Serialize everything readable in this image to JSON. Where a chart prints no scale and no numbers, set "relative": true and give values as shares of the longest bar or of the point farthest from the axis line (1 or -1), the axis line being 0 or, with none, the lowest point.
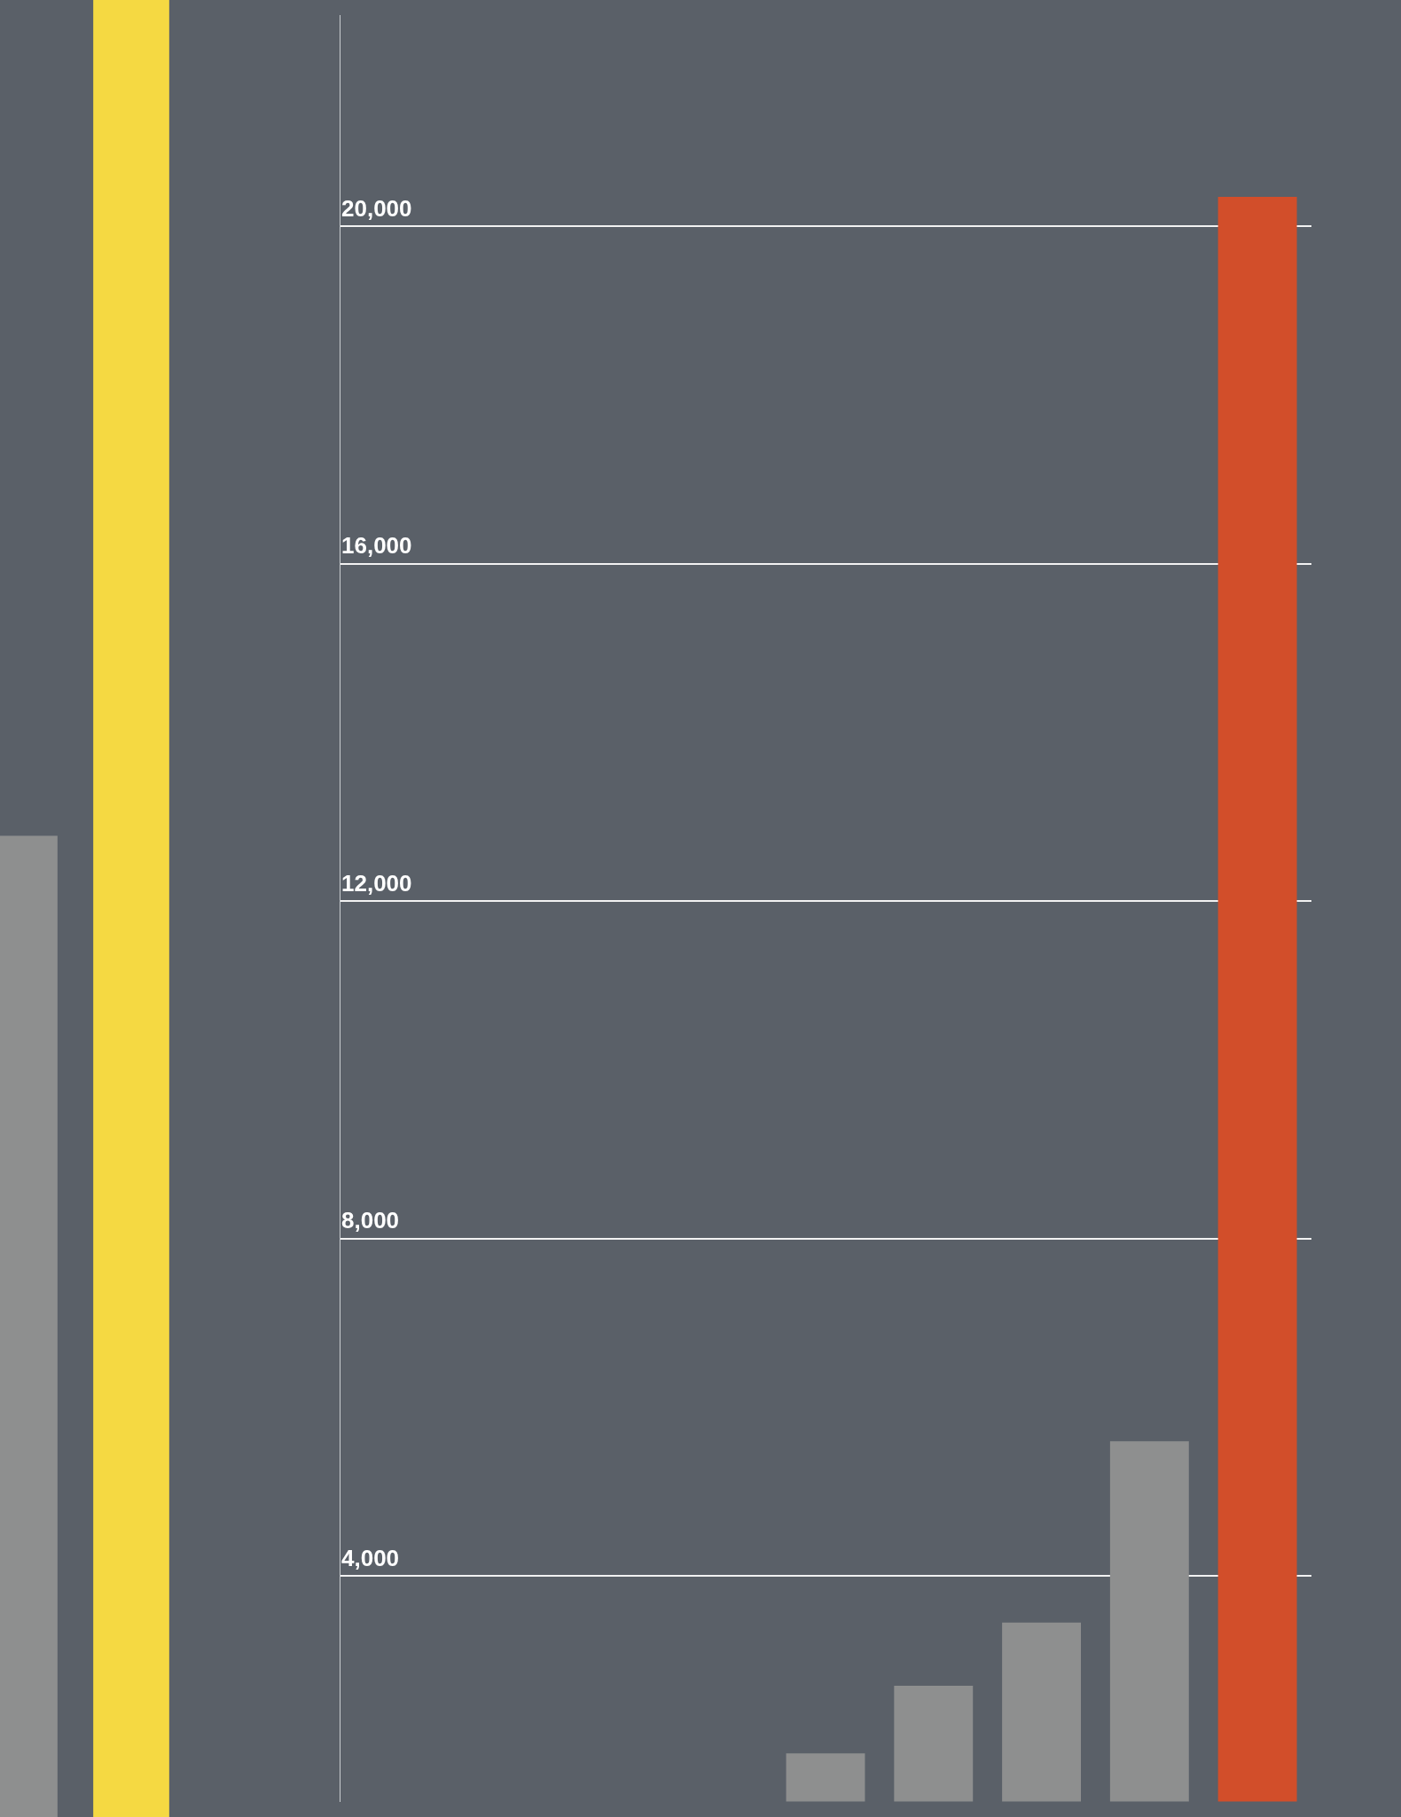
{
  "chart_data": [
    {
      "type": "bar",
      "relative": true,
      "categories": [
        null,
        null
      ],
      "values": [
        0.54,
        1
      ],
      "colors": [
        "#8e8f8f",
        "#f5d942"
      ]
    },
    {
      "type": "bar",
      "categories": [
        null,
        null,
        null,
        null,
        null,
        null,
        null,
        null,
        null
      ],
      "values": [
        null,
        null,
        null,
        null,
        1900,
        2700,
        3450,
        5600,
        20350
      ],
      "colors": [
        "#8e8f8f",
        "#8e8f8f",
        "#8e8f8f",
        "#8e8f8f",
        "#8e8f8f",
        "#8e8f8f",
        "#8e8f8f",
        "#8e8f8f",
        "#d24e2a"
      ],
      "ylim": [
        1330,
        22500
      ],
      "yticks": [
        {
          "value": 4000,
          "label": "4,000"
        },
        {
          "value": 8000,
          "label": "8,000"
        },
        {
          "value": 12000,
          "label": "12,000"
        },
        {
          "value": 16000,
          "label": "16,000"
        },
        {
          "value": 20000,
          "label": "20,000"
        }
      ],
      "grid": "y"
    }
  ]
}
